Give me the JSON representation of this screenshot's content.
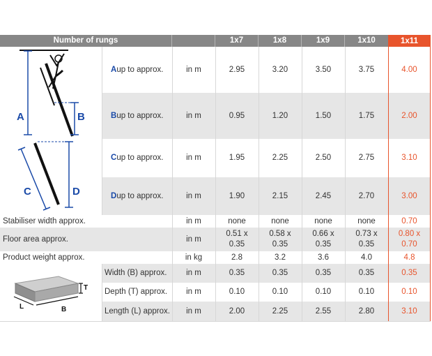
{
  "header": {
    "title": "Number of rungs",
    "cols": [
      "1x7",
      "1x8",
      "1x9",
      "1x10",
      "1x11"
    ]
  },
  "ladder_letters": {
    "a": "A",
    "b": "B",
    "c": "C",
    "d": "D"
  },
  "dim_rows": [
    {
      "letter": "A",
      "label": " up to approx.",
      "unit": "in m",
      "vals": [
        "2.95",
        "3.20",
        "3.50",
        "3.75",
        "4.00"
      ]
    },
    {
      "letter": "B",
      "label": " up to approx.",
      "unit": "in m",
      "vals": [
        "0.95",
        "1.20",
        "1.50",
        "1.75",
        "2.00"
      ]
    },
    {
      "letter": "C",
      "label": " up to approx.",
      "unit": "in m",
      "vals": [
        "1.95",
        "2.25",
        "2.50",
        "2.75",
        "3.10"
      ]
    },
    {
      "letter": "D",
      "label": " up to approx.",
      "unit": "in m",
      "vals": [
        "1.90",
        "2.15",
        "2.45",
        "2.70",
        "3.00"
      ]
    }
  ],
  "stabiliser": {
    "label": "Stabiliser width approx.",
    "unit": "in m",
    "vals": [
      "none",
      "none",
      "none",
      "none",
      "0.70"
    ]
  },
  "floor": {
    "label": "Floor area approx.",
    "unit": "in m",
    "vals": [
      [
        "0.51 x",
        "0.35"
      ],
      [
        "0.58 x",
        "0.35"
      ],
      [
        "0.66 x",
        "0.35"
      ],
      [
        "0.73 x",
        "0.35"
      ],
      [
        "0.80 x",
        "0.70"
      ]
    ]
  },
  "weight": {
    "label": "Product weight approx.",
    "unit": "in kg",
    "vals": [
      "2.8",
      "3.2",
      "3.6",
      "4.0",
      "4.8"
    ]
  },
  "box_letters": {
    "t": "T",
    "l": "L",
    "b": "B"
  },
  "pack_rows": [
    {
      "label": "Width (B) approx.",
      "unit": "in m",
      "vals": [
        "0.35",
        "0.35",
        "0.35",
        "0.35",
        "0.35"
      ]
    },
    {
      "label": "Depth (T) approx.",
      "unit": "in m",
      "vals": [
        "0.10",
        "0.10",
        "0.10",
        "0.10",
        "0.10"
      ]
    },
    {
      "label": "Length (L) approx.",
      "unit": "in m",
      "vals": [
        "2.00",
        "2.25",
        "2.55",
        "2.80",
        "3.10"
      ]
    }
  ],
  "colors": {
    "header": "#878787",
    "accent": "#e8542c",
    "letter": "#1a4aa8",
    "stripe": "#e6e6e6"
  }
}
